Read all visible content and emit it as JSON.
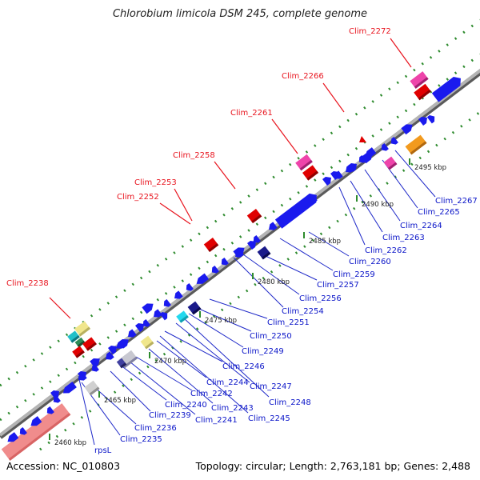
{
  "title": "Chlorobium limicola DSM 245, complete genome",
  "footer": {
    "accession": "Accession: NC_010803",
    "summary": "Topology: circular; Length: 2,763,181 bp; Genes: 2,488"
  },
  "colors": {
    "highlight_label": "#e8141e",
    "gene_label": "#0a14c8",
    "tick_label": "#222222",
    "leader_red": "#e8141e",
    "leader_blue": "#1e28c8"
  },
  "ruler": [
    {
      "label": "2460 kbp",
      "pos": 2460
    },
    {
      "label": "2465 kbp",
      "pos": 2465
    },
    {
      "label": "2470 kbp",
      "pos": 2470
    },
    {
      "label": "2475 kbp",
      "pos": 2475
    },
    {
      "label": "2480 kbp",
      "pos": 2480
    },
    {
      "label": "2485 kbp",
      "pos": 2485
    },
    {
      "label": "2490 kbp",
      "pos": 2490
    },
    {
      "label": "2495 kbp",
      "pos": 2495
    }
  ],
  "highlight_labels": [
    "Clim_2238",
    "Clim_2252",
    "Clim_2253",
    "Clim_2258",
    "Clim_2261",
    "Clim_2266",
    "Clim_2272"
  ],
  "gene_labels": [
    "rpsL",
    "Clim_2235",
    "Clim_2236",
    "Clim_2239",
    "Clim_2240",
    "Clim_2241",
    "Clim_2242",
    "Clim_2243",
    "Clim_2244",
    "Clim_2245",
    "Clim_2246",
    "Clim_2247",
    "Clim_2248",
    "Clim_2249",
    "Clim_2250",
    "Clim_2251",
    "Clim_2254",
    "Clim_2256",
    "Clim_2257",
    "Clim_2259",
    "Clim_2260",
    "Clim_2262",
    "Clim_2263",
    "Clim_2264",
    "Clim_2265",
    "Clim_2267"
  ]
}
